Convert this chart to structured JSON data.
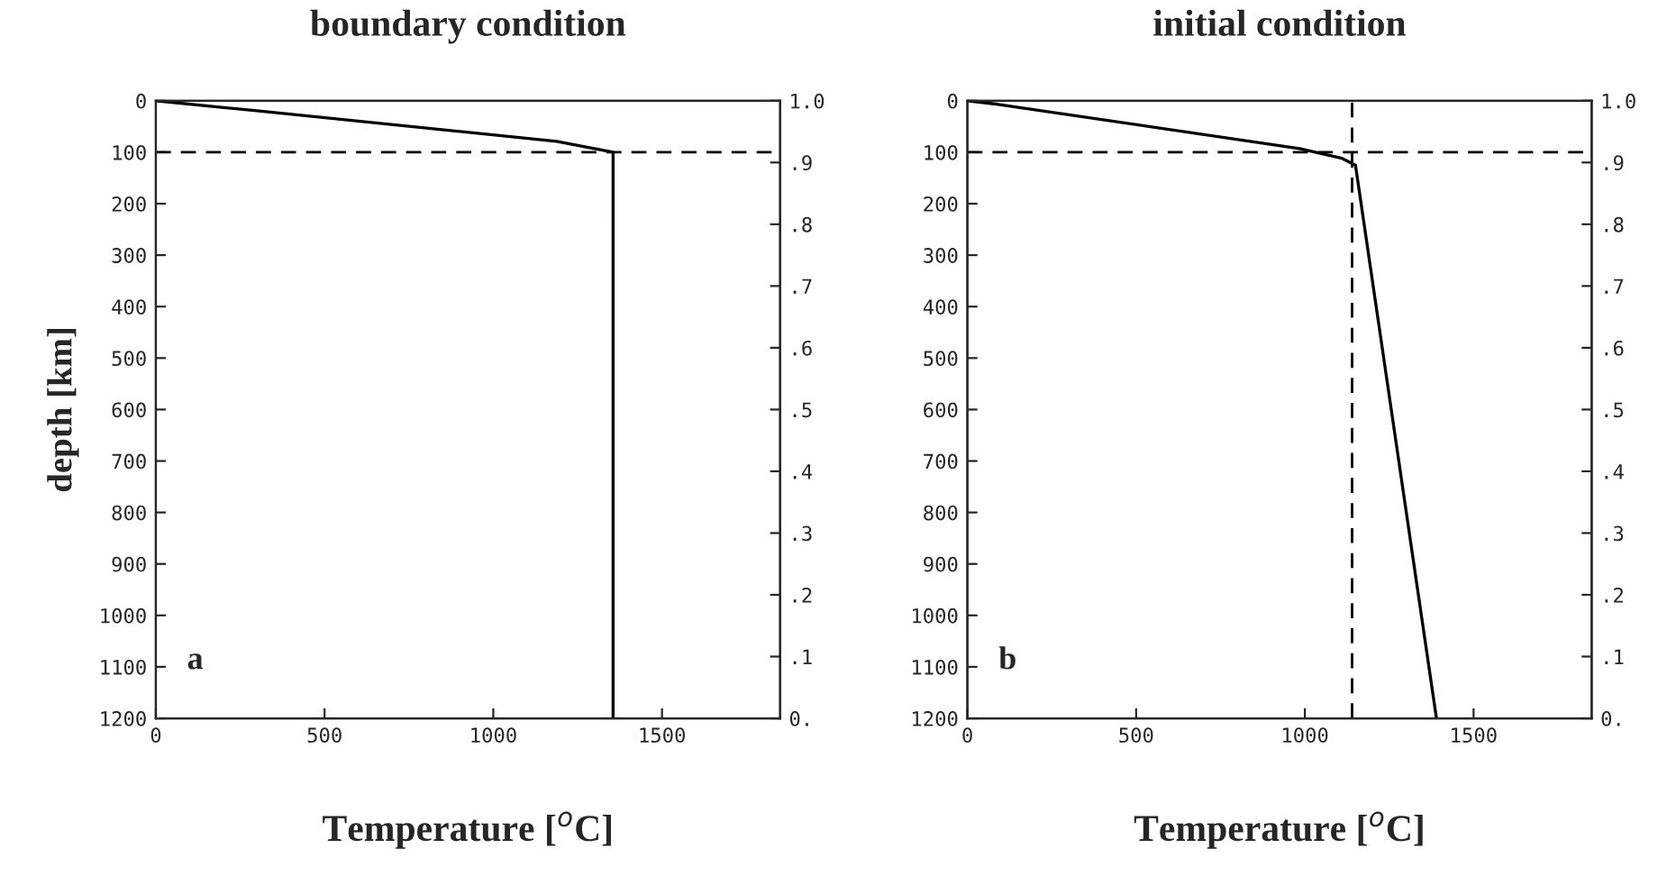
{
  "chart_data": [
    {
      "type": "line",
      "title": "boundary condition",
      "xlabel": "Temperature [$^{o}$C]",
      "ylabel": "depth [km]",
      "xlim": [
        0,
        1850
      ],
      "xticks": [
        0,
        500,
        1000,
        1500
      ],
      "ylim": [
        1200,
        0
      ],
      "yticks": [
        0,
        100,
        200,
        300,
        400,
        500,
        600,
        700,
        800,
        900,
        1000,
        1100,
        1200
      ],
      "y2lim": [
        0,
        1
      ],
      "y2ticks": [
        {
          "value": 0,
          "label": "0."
        },
        {
          "value": 0.1,
          "label": ".1"
        },
        {
          "value": 0.2,
          "label": ".2"
        },
        {
          "value": 0.3,
          "label": ".3"
        },
        {
          "value": 0.4,
          "label": ".4"
        },
        {
          "value": 0.5,
          "label": ".5"
        },
        {
          "value": 0.6,
          "label": ".6"
        },
        {
          "value": 0.7,
          "label": ".7"
        },
        {
          "value": 0.8,
          "label": ".8"
        },
        {
          "value": 0.9,
          "label": ".9"
        },
        {
          "value": 1.0,
          "label": "1.0"
        }
      ],
      "series": [
        {
          "color": "#000000",
          "x": [
            0,
            306,
            1188,
            1355,
            1355
          ],
          "values": [
            0,
            20,
            79,
            100,
            1200
          ]
        }
      ],
      "ref_lines": [
        {
          "axis": "y",
          "value": 100,
          "line_style": "dashed",
          "color": "#000000"
        }
      ],
      "annotations": [
        "a"
      ],
      "line_style": "solid",
      "marker": "none",
      "grid": false,
      "legend": false
    },
    {
      "type": "line",
      "title": "initial condition",
      "xlabel": "Temperature [$^{o}$C]",
      "xlim": [
        0,
        1850
      ],
      "xticks": [
        0,
        500,
        1000,
        1500
      ],
      "ylim": [
        1200,
        0
      ],
      "yticks": [
        0,
        100,
        200,
        300,
        400,
        500,
        600,
        700,
        800,
        900,
        1000,
        1100,
        1200
      ],
      "y2lim": [
        0,
        1
      ],
      "y2ticks": [
        {
          "value": 0,
          "label": "0."
        },
        {
          "value": 0.1,
          "label": ".1"
        },
        {
          "value": 0.2,
          "label": ".2"
        },
        {
          "value": 0.3,
          "label": ".3"
        },
        {
          "value": 0.4,
          "label": ".4"
        },
        {
          "value": 0.5,
          "label": ".5"
        },
        {
          "value": 0.6,
          "label": ".6"
        },
        {
          "value": 0.7,
          "label": ".7"
        },
        {
          "value": 0.8,
          "label": ".8"
        },
        {
          "value": 0.9,
          "label": ".9"
        },
        {
          "value": 1.0,
          "label": "1.0"
        }
      ],
      "series": [
        {
          "color": "#000000",
          "x": [
            0,
            91,
            984,
            1110,
            1150,
            1390
          ],
          "values": [
            0,
            7,
            93,
            112,
            125,
            1200
          ]
        }
      ],
      "ref_lines": [
        {
          "axis": "y",
          "value": 100,
          "line_style": "dashed",
          "color": "#000000"
        },
        {
          "axis": "x",
          "value": 1140,
          "line_style": "dashed",
          "color": "#000000"
        }
      ],
      "annotations": [
        "b"
      ],
      "line_style": "solid",
      "marker": "none",
      "grid": false,
      "legend": false
    }
  ]
}
